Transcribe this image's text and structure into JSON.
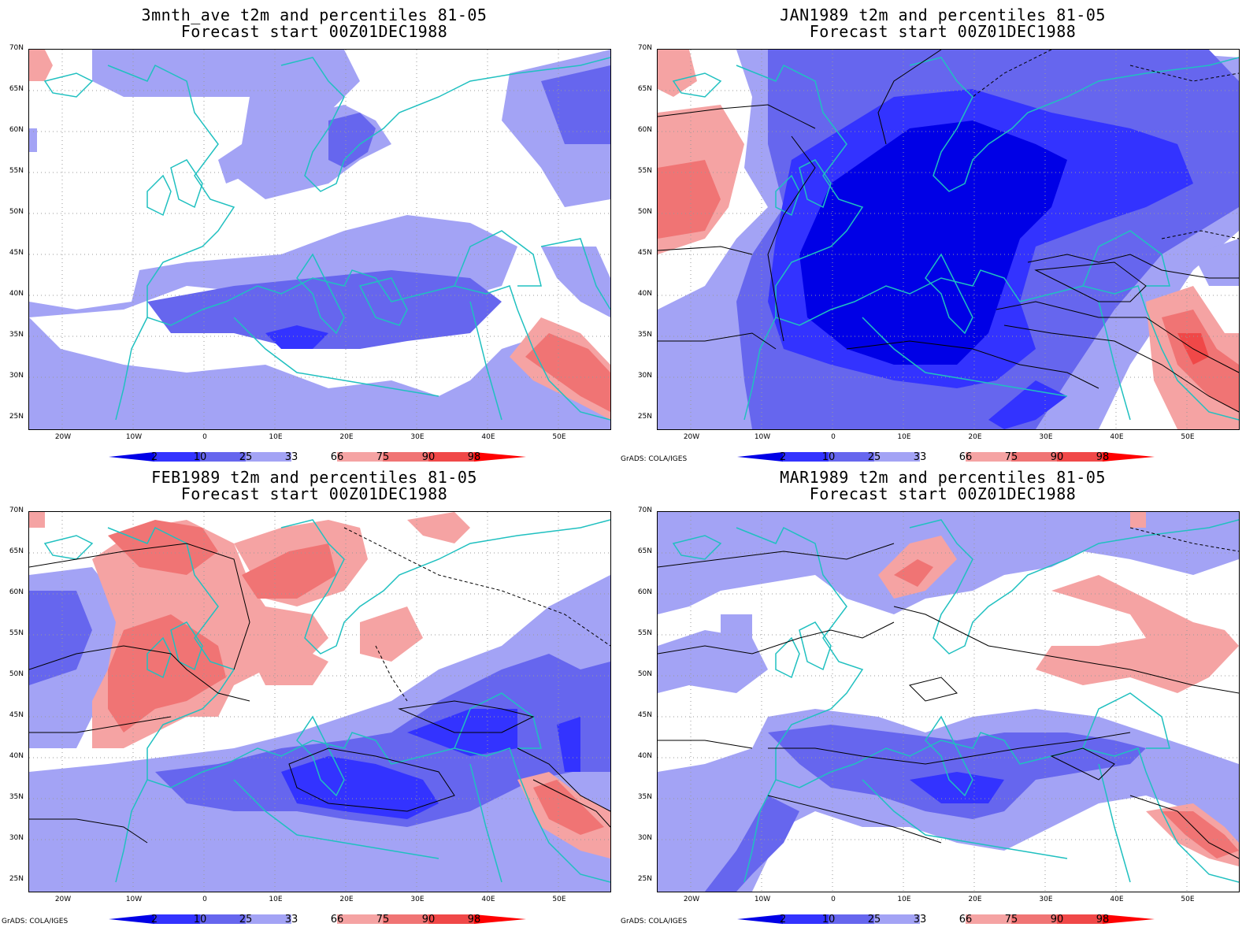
{
  "panels": [
    {
      "title_line1": "3mnth_ave t2m and percentiles 81-05",
      "title_line2": "Forecast start 00Z01DEC1988",
      "credit": ""
    },
    {
      "title_line1": "JAN1989 t2m and percentiles 81-05",
      "title_line2": "Forecast start 00Z01DEC1988",
      "credit": "GrADS: COLA/IGES"
    },
    {
      "title_line1": "FEB1989 t2m and percentiles 81-05",
      "title_line2": "Forecast start 00Z01DEC1988",
      "credit": "GrADS: COLA/IGES"
    },
    {
      "title_line1": "MAR1989 t2m and percentiles 81-05",
      "title_line2": "Forecast start 00Z01DEC1988",
      "credit": "GrADS: COLA/IGES"
    }
  ],
  "latitude_labels": [
    "70N",
    "65N",
    "60N",
    "55N",
    "50N",
    "45N",
    "40N",
    "35N",
    "30N",
    "25N"
  ],
  "longitude_labels": [
    "20W",
    "10W",
    "0",
    "10E",
    "20E",
    "30E",
    "40E",
    "50E"
  ],
  "colorbar": {
    "ticks": [
      "2",
      "10",
      "25",
      "33",
      "66",
      "75",
      "90",
      "98"
    ],
    "colors": [
      "#0000e6",
      "#3333ff",
      "#6666ee",
      "#a3a3f5",
      "#ffffff",
      "#f5a3a3",
      "#f07474",
      "#f04848",
      "#ff0000"
    ]
  },
  "colors": {
    "coastline": "#20c0c0",
    "contour": "#000000",
    "grid": "#999999"
  }
}
